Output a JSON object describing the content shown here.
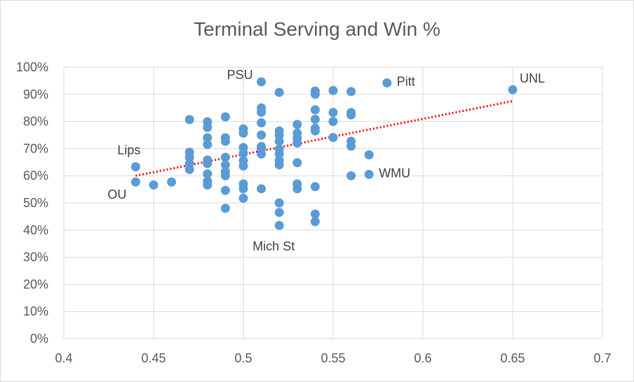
{
  "chart_data": {
    "type": "scatter",
    "title": "Terminal Serving and Win %",
    "xlabel": "",
    "ylabel": "",
    "xlim": [
      0.4,
      0.7
    ],
    "ylim": [
      0,
      1.0
    ],
    "x_ticks": [
      0.4,
      0.45,
      0.5,
      0.55,
      0.6,
      0.65,
      0.7
    ],
    "x_tick_labels": [
      "0.4",
      "0.45",
      "0.5",
      "0.55",
      "0.6",
      "0.65",
      "0.7"
    ],
    "y_ticks": [
      0,
      0.1,
      0.2,
      0.3,
      0.4,
      0.5,
      0.6,
      0.7,
      0.8,
      0.9,
      1.0
    ],
    "y_tick_labels": [
      "0%",
      "10%",
      "20%",
      "30%",
      "40%",
      "50%",
      "60%",
      "70%",
      "80%",
      "90%",
      "100%"
    ],
    "grid": true,
    "legend": "none",
    "marker_color": "#5b9bd5",
    "trendline": {
      "type": "linear",
      "color": "#ff0000",
      "style": "dotted",
      "x": [
        0.44,
        0.65
      ],
      "y": [
        0.6,
        0.875
      ]
    },
    "points": [
      {
        "x": 0.44,
        "y": 0.633
      },
      {
        "x": 0.44,
        "y": 0.577
      },
      {
        "x": 0.45,
        "y": 0.566
      },
      {
        "x": 0.46,
        "y": 0.577
      },
      {
        "x": 0.47,
        "y": 0.807
      },
      {
        "x": 0.47,
        "y": 0.687
      },
      {
        "x": 0.47,
        "y": 0.668
      },
      {
        "x": 0.47,
        "y": 0.645
      },
      {
        "x": 0.47,
        "y": 0.623
      },
      {
        "x": 0.48,
        "y": 0.799
      },
      {
        "x": 0.48,
        "y": 0.778
      },
      {
        "x": 0.48,
        "y": 0.74
      },
      {
        "x": 0.48,
        "y": 0.715
      },
      {
        "x": 0.48,
        "y": 0.658
      },
      {
        "x": 0.48,
        "y": 0.645
      },
      {
        "x": 0.48,
        "y": 0.607
      },
      {
        "x": 0.48,
        "y": 0.58
      },
      {
        "x": 0.48,
        "y": 0.566
      },
      {
        "x": 0.49,
        "y": 0.817
      },
      {
        "x": 0.49,
        "y": 0.74
      },
      {
        "x": 0.49,
        "y": 0.727
      },
      {
        "x": 0.49,
        "y": 0.668
      },
      {
        "x": 0.49,
        "y": 0.64
      },
      {
        "x": 0.49,
        "y": 0.615
      },
      {
        "x": 0.49,
        "y": 0.6
      },
      {
        "x": 0.49,
        "y": 0.546
      },
      {
        "x": 0.49,
        "y": 0.48
      },
      {
        "x": 0.5,
        "y": 0.773
      },
      {
        "x": 0.5,
        "y": 0.757
      },
      {
        "x": 0.5,
        "y": 0.704
      },
      {
        "x": 0.5,
        "y": 0.683
      },
      {
        "x": 0.5,
        "y": 0.656
      },
      {
        "x": 0.5,
        "y": 0.636
      },
      {
        "x": 0.5,
        "y": 0.57
      },
      {
        "x": 0.5,
        "y": 0.552
      },
      {
        "x": 0.5,
        "y": 0.517
      },
      {
        "x": 0.51,
        "y": 0.946
      },
      {
        "x": 0.51,
        "y": 0.85
      },
      {
        "x": 0.51,
        "y": 0.834
      },
      {
        "x": 0.51,
        "y": 0.795
      },
      {
        "x": 0.51,
        "y": 0.75
      },
      {
        "x": 0.51,
        "y": 0.708
      },
      {
        "x": 0.51,
        "y": 0.698
      },
      {
        "x": 0.51,
        "y": 0.68
      },
      {
        "x": 0.51,
        "y": 0.552
      },
      {
        "x": 0.52,
        "y": 0.907
      },
      {
        "x": 0.52,
        "y": 0.765
      },
      {
        "x": 0.52,
        "y": 0.75
      },
      {
        "x": 0.52,
        "y": 0.727
      },
      {
        "x": 0.52,
        "y": 0.698
      },
      {
        "x": 0.52,
        "y": 0.68
      },
      {
        "x": 0.52,
        "y": 0.656
      },
      {
        "x": 0.52,
        "y": 0.64
      },
      {
        "x": 0.52,
        "y": 0.5
      },
      {
        "x": 0.52,
        "y": 0.465
      },
      {
        "x": 0.52,
        "y": 0.417
      },
      {
        "x": 0.53,
        "y": 0.789
      },
      {
        "x": 0.53,
        "y": 0.757
      },
      {
        "x": 0.53,
        "y": 0.739
      },
      {
        "x": 0.53,
        "y": 0.72
      },
      {
        "x": 0.53,
        "y": 0.648
      },
      {
        "x": 0.53,
        "y": 0.57
      },
      {
        "x": 0.53,
        "y": 0.552
      },
      {
        "x": 0.54,
        "y": 0.912
      },
      {
        "x": 0.54,
        "y": 0.9
      },
      {
        "x": 0.54,
        "y": 0.843
      },
      {
        "x": 0.54,
        "y": 0.808
      },
      {
        "x": 0.54,
        "y": 0.775
      },
      {
        "x": 0.54,
        "y": 0.765
      },
      {
        "x": 0.54,
        "y": 0.56
      },
      {
        "x": 0.54,
        "y": 0.459
      },
      {
        "x": 0.54,
        "y": 0.431
      },
      {
        "x": 0.55,
        "y": 0.914
      },
      {
        "x": 0.55,
        "y": 0.833
      },
      {
        "x": 0.55,
        "y": 0.8
      },
      {
        "x": 0.55,
        "y": 0.741
      },
      {
        "x": 0.56,
        "y": 0.91
      },
      {
        "x": 0.56,
        "y": 0.833
      },
      {
        "x": 0.56,
        "y": 0.824
      },
      {
        "x": 0.56,
        "y": 0.727
      },
      {
        "x": 0.56,
        "y": 0.709
      },
      {
        "x": 0.56,
        "y": 0.6
      },
      {
        "x": 0.57,
        "y": 0.677
      },
      {
        "x": 0.57,
        "y": 0.605
      },
      {
        "x": 0.58,
        "y": 0.942
      },
      {
        "x": 0.65,
        "y": 0.917
      }
    ],
    "annotations": [
      {
        "text": "PSU",
        "x": 0.51,
        "y": 0.946,
        "anchor": "end"
      },
      {
        "text": "Pitt",
        "x": 0.58,
        "y": 0.942,
        "anchor": "start"
      },
      {
        "text": "UNL",
        "x": 0.65,
        "y": 0.917,
        "anchor": "start-above"
      },
      {
        "text": "Lips",
        "x": 0.44,
        "y": 0.633,
        "anchor": "above-left"
      },
      {
        "text": "OU",
        "x": 0.44,
        "y": 0.577,
        "anchor": "below-left"
      },
      {
        "text": "WMU",
        "x": 0.57,
        "y": 0.605,
        "anchor": "start"
      },
      {
        "text": "Mich St",
        "x": 0.52,
        "y": 0.417,
        "anchor": "below"
      }
    ]
  }
}
